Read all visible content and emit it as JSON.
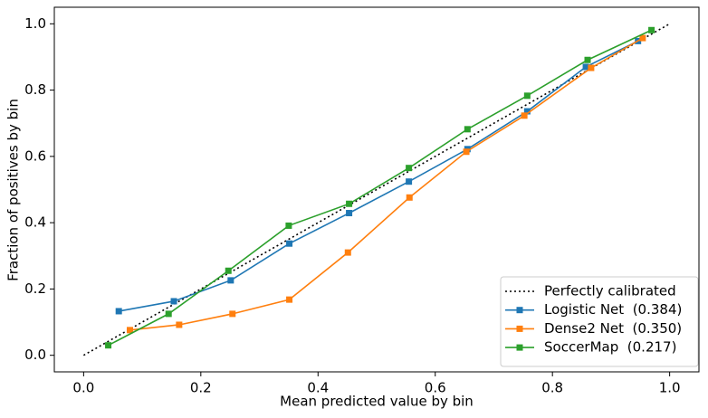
{
  "chart_data": {
    "type": "line",
    "xlabel": "Mean predicted value by bin",
    "ylabel": "Fraction of positives by bin",
    "xlim": [
      -0.05,
      1.05
    ],
    "ylim": [
      -0.05,
      1.05
    ],
    "xticks": [
      {
        "value": 0,
        "label": "0.0"
      },
      0.2,
      0.4,
      0.6,
      0.8,
      {
        "value": 1,
        "label": "1.0"
      }
    ],
    "yticks": [
      {
        "value": 0,
        "label": "0.0"
      },
      0.2,
      0.4,
      0.6,
      0.8,
      {
        "value": 1,
        "label": "1.0"
      }
    ],
    "legend": "lower right",
    "series": [
      {
        "name": "Perfectly calibrated",
        "color": "#000000",
        "linestyle": "dotted",
        "x": [
          0,
          1
        ],
        "values": [
          0,
          1
        ]
      },
      {
        "name": "Logistic Net  (0.384)",
        "color": "#1f77b4",
        "marker": "square",
        "x": [
          0.06,
          0.154,
          0.251,
          0.351,
          0.453,
          0.555,
          0.655,
          0.757,
          0.857,
          0.946
        ],
        "values": [
          0.133,
          0.163,
          0.226,
          0.337,
          0.429,
          0.524,
          0.622,
          0.736,
          0.87,
          0.948
        ]
      },
      {
        "name": "Dense2 Net  (0.350)",
        "color": "#ff7f0e",
        "marker": "square",
        "x": [
          0.079,
          0.163,
          0.254,
          0.351,
          0.451,
          0.556,
          0.653,
          0.752,
          0.866,
          0.954
        ],
        "values": [
          0.076,
          0.092,
          0.125,
          0.168,
          0.31,
          0.476,
          0.614,
          0.723,
          0.867,
          0.957
        ]
      },
      {
        "name": "SoccerMap  (0.217)",
        "color": "#2ca02c",
        "marker": "square",
        "x": [
          0.042,
          0.145,
          0.247,
          0.35,
          0.453,
          0.555,
          0.655,
          0.757,
          0.86,
          0.969
        ],
        "values": [
          0.03,
          0.125,
          0.255,
          0.391,
          0.457,
          0.565,
          0.682,
          0.783,
          0.891,
          0.981
        ]
      }
    ]
  }
}
